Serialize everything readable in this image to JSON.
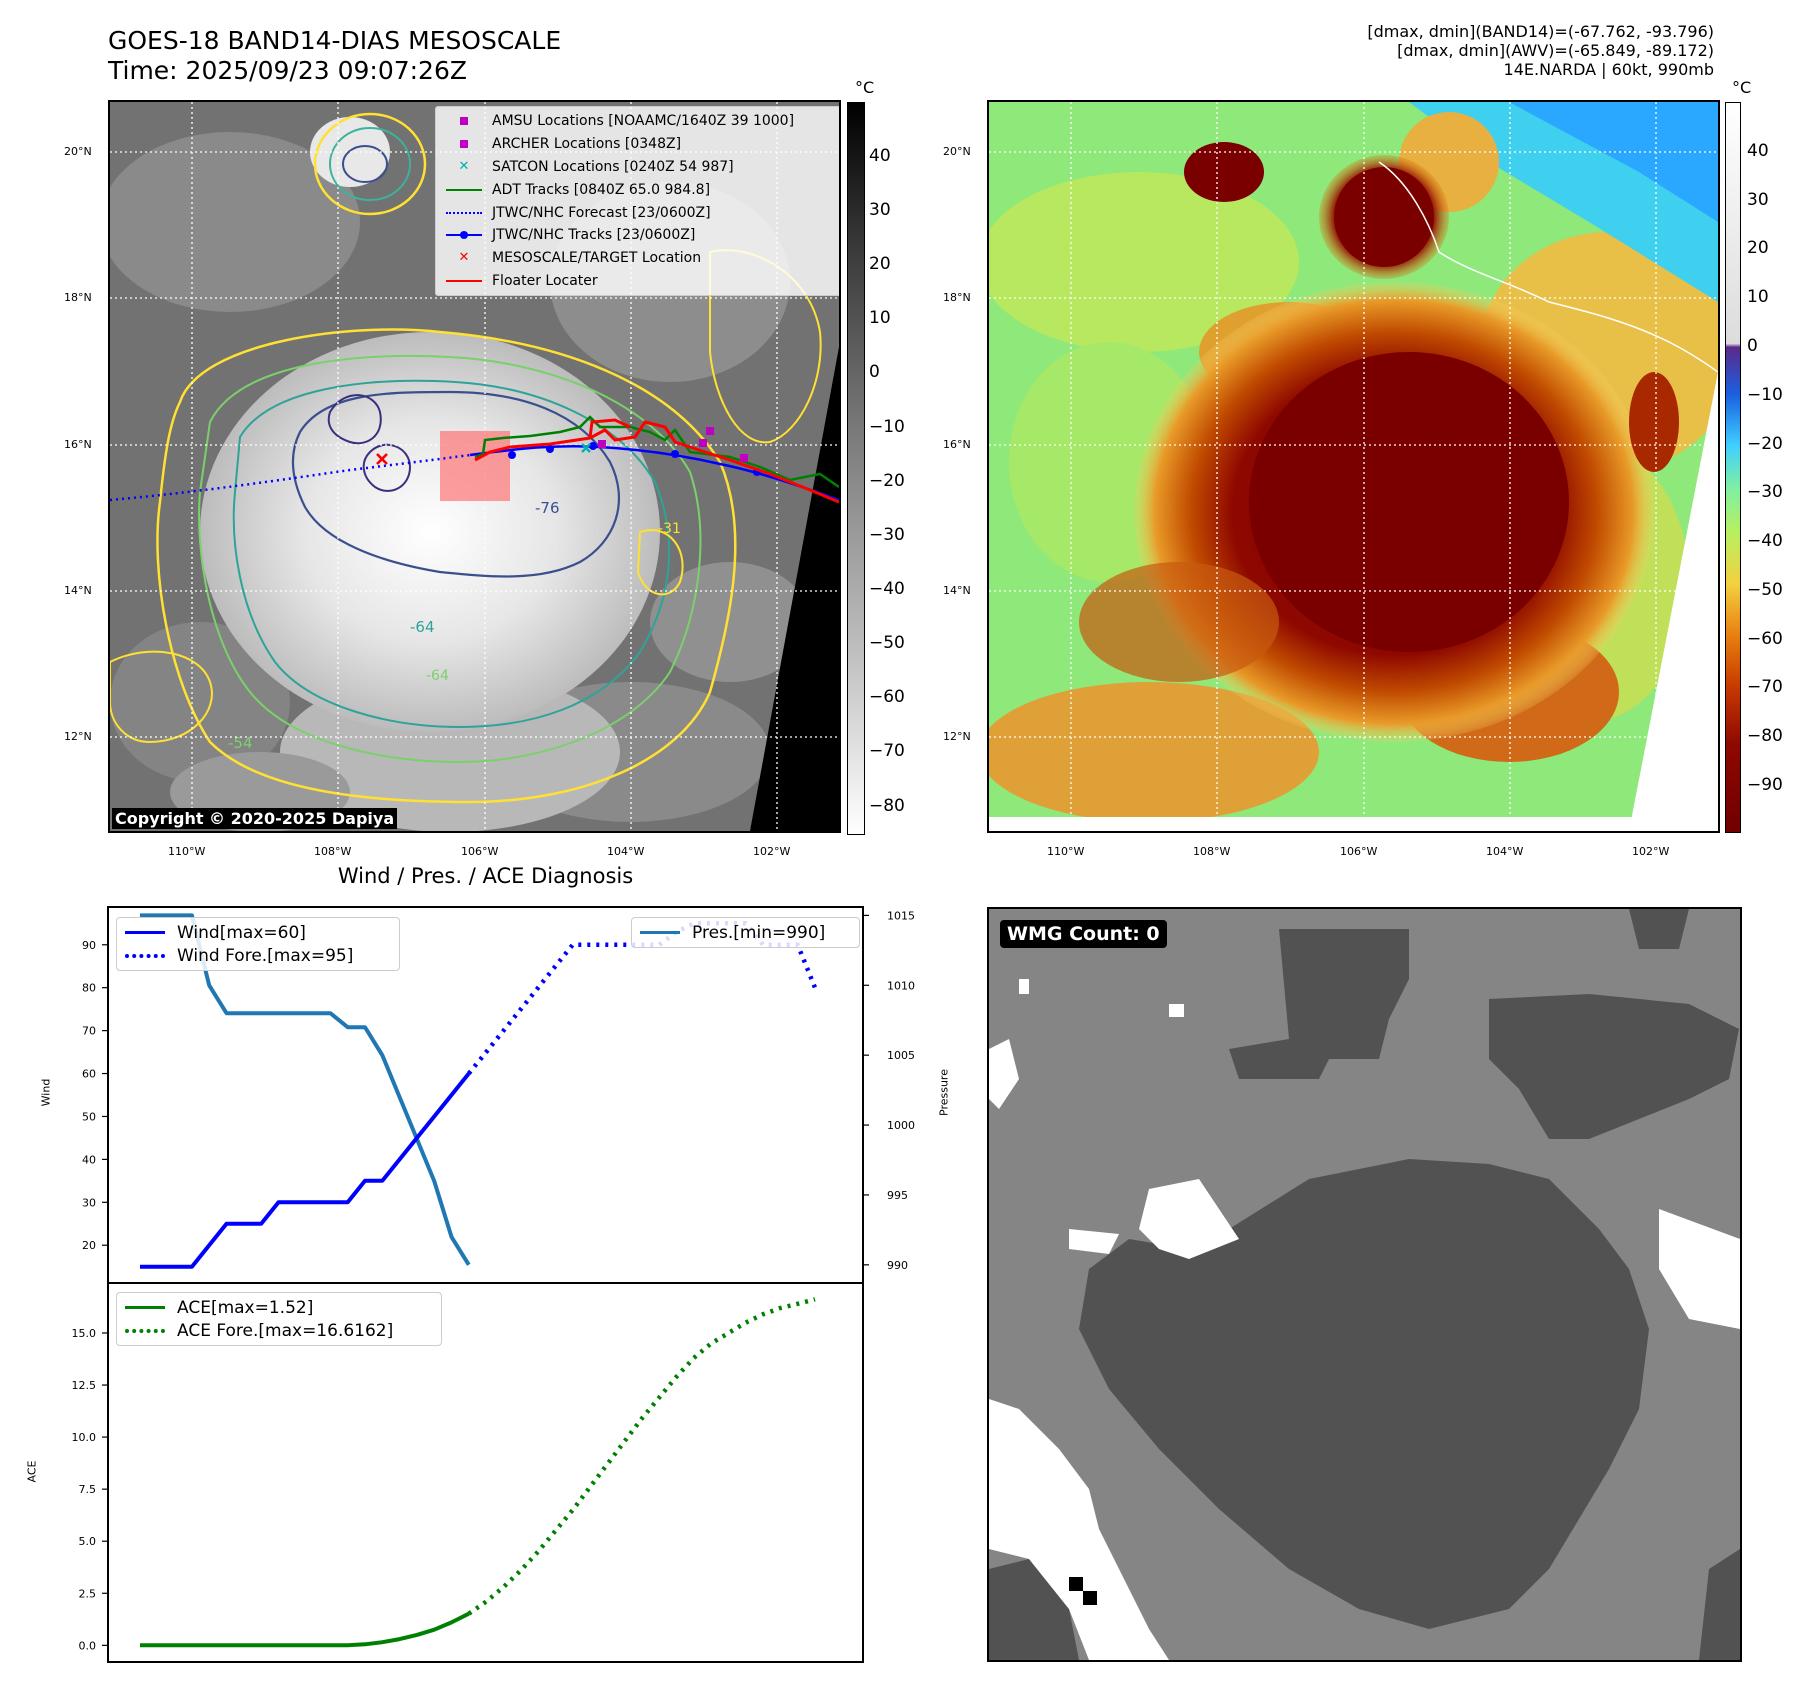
{
  "header": {
    "title_line1": "GOES-18 BAND14-DIAS MESOSCALE",
    "title_line2": "Time: 2025/09/23 09:07:26Z",
    "info_line1": "[dmax, dmin](BAND14)=(-67.762, -93.796)",
    "info_line2": "[dmax, dmin](AWV)=(-65.849, -89.172)",
    "info_line3": "14E.NARDA | 60kt, 990mb"
  },
  "map_panel": {
    "lat_labels": [
      "20°N",
      "18°N",
      "16°N",
      "14°N",
      "12°N"
    ],
    "lon_labels": [
      "110°W",
      "108°W",
      "106°W",
      "104°W",
      "102°W"
    ],
    "copyright": "Copyright © 2020-2025 Dapiya",
    "legend": [
      {
        "label": "AMSU Locations [NOAAMC/1640Z 39 1000]",
        "color": "#c000c0",
        "marker": "square"
      },
      {
        "label": "ARCHER Locations [0348Z]",
        "color": "#c000c0",
        "marker": "square"
      },
      {
        "label": "SATCON Locations [0240Z 54 987]",
        "color": "#00b0b0",
        "marker": "x"
      },
      {
        "label": "ADT Tracks [0840Z 65.0 984.8]",
        "color": "#008000",
        "marker": "line"
      },
      {
        "label": "JTWC/NHC Forecast [23/0600Z]",
        "color": "#0000ff",
        "marker": "dotted"
      },
      {
        "label": "JTWC/NHC Tracks [23/0600Z]",
        "color": "#0000ff",
        "marker": "line-dot"
      },
      {
        "label": "MESOSCALE/TARGET Location",
        "color": "#ff0000",
        "marker": "x"
      },
      {
        "label": "Floater Locater",
        "color": "#ff0000",
        "marker": "line"
      }
    ],
    "contour_labels": [
      "-76",
      "-64",
      "-54",
      "-31",
      "-64"
    ],
    "colorbar": {
      "unit": "°C",
      "ticks": [
        "40",
        "30",
        "20",
        "10",
        "0",
        "−10",
        "−20",
        "−30",
        "−40",
        "−50",
        "−60",
        "−70",
        "−80"
      ]
    }
  },
  "awv_panel": {
    "lat_labels": [
      "20°N",
      "18°N",
      "16°N",
      "14°N",
      "12°N"
    ],
    "lon_labels": [
      "110°W",
      "108°W",
      "106°W",
      "104°W",
      "102°W"
    ],
    "colorbar": {
      "unit": "°C",
      "ticks": [
        "40",
        "30",
        "20",
        "10",
        "0",
        "−10",
        "−20",
        "−30",
        "−40",
        "−50",
        "−60",
        "−70",
        "−80",
        "−90"
      ]
    }
  },
  "diag_title": "Wind / Pres. / ACE Diagnosis",
  "wmg_panel": {
    "label": "WMG Count: 0"
  },
  "chart_data": [
    {
      "type": "line",
      "panel": "wind-pressure",
      "x_index": [
        0,
        1,
        2,
        3,
        4,
        5,
        6,
        7,
        8,
        9,
        10,
        11,
        12,
        13,
        14,
        15,
        16,
        17,
        18,
        19,
        20,
        21,
        22,
        23,
        24,
        25,
        26,
        27,
        28,
        29,
        30,
        31,
        32,
        33,
        34,
        35,
        36,
        37,
        38,
        39
      ],
      "series": [
        {
          "name": "Wind[max=60]",
          "axis": "left",
          "color": "#0000ff",
          "style": "solid",
          "x": [
            0,
            1,
            2,
            3,
            4,
            5,
            6,
            7,
            8,
            9,
            10,
            11,
            12,
            13,
            14,
            15,
            16,
            17,
            18,
            19
          ],
          "values": [
            15,
            15,
            15,
            15,
            20,
            25,
            25,
            25,
            30,
            30,
            30,
            30,
            30,
            35,
            35,
            40,
            45,
            50,
            55,
            60
          ]
        },
        {
          "name": "Wind Fore.[max=95]",
          "axis": "left",
          "color": "#0000ff",
          "style": "dotted",
          "x": [
            19,
            20,
            21,
            22,
            23,
            24,
            25,
            26,
            27,
            28,
            29,
            30,
            31,
            32,
            33,
            34,
            35,
            36,
            37,
            38,
            39
          ],
          "values": [
            60,
            65,
            70,
            75,
            80,
            85,
            90,
            90,
            90,
            90,
            90,
            90,
            93,
            95,
            95,
            95,
            95,
            90,
            90,
            90,
            80
          ]
        },
        {
          "name": "Pres.[min=990]",
          "axis": "right",
          "color": "#1f77b4",
          "style": "solid",
          "x": [
            0,
            1,
            2,
            3,
            4,
            5,
            6,
            7,
            8,
            9,
            10,
            11,
            12,
            13,
            14,
            15,
            16,
            17,
            18,
            19
          ],
          "values": [
            1015,
            1015,
            1015,
            1015,
            1010,
            1008,
            1008,
            1008,
            1008,
            1008,
            1008,
            1008,
            1007,
            1007,
            1005,
            1002,
            999,
            996,
            992,
            990
          ]
        }
      ],
      "ylabel_left": "Wind",
      "ylabel_right": "Pressure",
      "yticks_left": [
        20,
        30,
        40,
        50,
        60,
        70,
        80,
        90
      ],
      "yticks_right": [
        990,
        995,
        1000,
        1005,
        1010,
        1015
      ],
      "ylim_left": [
        11.2,
        98.8
      ],
      "ylim_right": [
        988.7,
        1015.6
      ],
      "legend_left": "top-left",
      "legend_right": "top-right"
    },
    {
      "type": "line",
      "panel": "ace",
      "series": [
        {
          "name": "ACE[max=1.52]",
          "color": "#008000",
          "style": "solid",
          "x": [
            0,
            2,
            4,
            6,
            8,
            10,
            12,
            13,
            14,
            15,
            16,
            17,
            18,
            19
          ],
          "values": [
            0,
            0,
            0,
            0,
            0,
            0,
            0,
            0.05,
            0.15,
            0.3,
            0.5,
            0.75,
            1.1,
            1.52
          ]
        },
        {
          "name": "ACE Fore.[max=16.6162]",
          "color": "#008000",
          "style": "dotted",
          "x": [
            19,
            20,
            21,
            22,
            23,
            24,
            25,
            26,
            27,
            28,
            29,
            30,
            31,
            32,
            33,
            34,
            35,
            36,
            37,
            38,
            39
          ],
          "values": [
            1.52,
            2.1,
            2.8,
            3.6,
            4.5,
            5.5,
            6.5,
            7.6,
            8.7,
            9.8,
            10.9,
            11.9,
            12.9,
            13.8,
            14.5,
            15.0,
            15.5,
            15.9,
            16.2,
            16.4,
            16.6162
          ]
        }
      ],
      "ylabel": "ACE",
      "yticks": [
        0.0,
        2.5,
        5.0,
        7.5,
        10.0,
        12.5,
        15.0
      ],
      "ylim": [
        -0.8,
        17.4
      ],
      "legend": "top-left"
    }
  ]
}
